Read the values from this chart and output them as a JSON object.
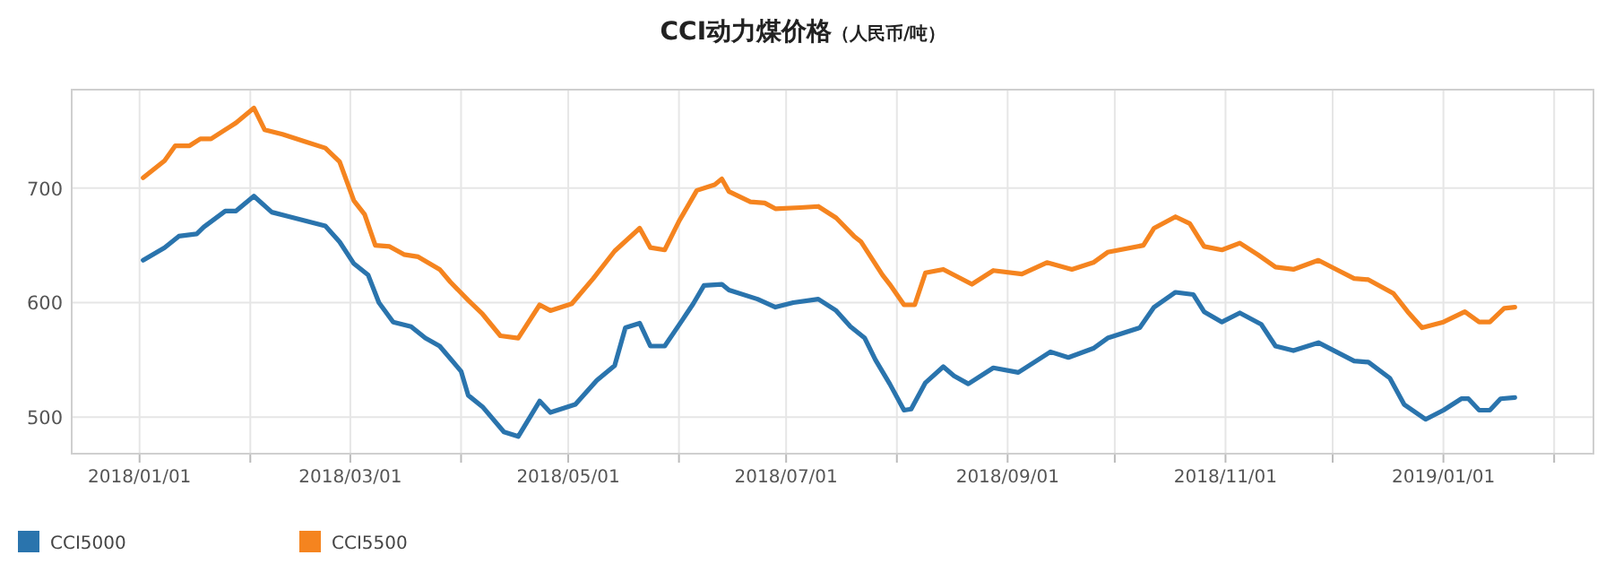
{
  "chart_data": {
    "type": "line",
    "title": "CCI动力煤价格",
    "subtitle": "（人民币/吨）",
    "xlim": [
      "2017-12-13",
      "2019-02-12"
    ],
    "ylim": [
      468,
      786
    ],
    "yticks": [
      500,
      600,
      700
    ],
    "xticks": [
      {
        "value": "2018-01-01",
        "label": "2018/01/01"
      },
      {
        "value": "2018-02-01",
        "label": null
      },
      {
        "value": "2018-03-01",
        "label": "2018/03/01"
      },
      {
        "value": "2018-04-01",
        "label": null
      },
      {
        "value": "2018-05-01",
        "label": "2018/05/01"
      },
      {
        "value": "2018-06-01",
        "label": null
      },
      {
        "value": "2018-07-01",
        "label": "2018/07/01"
      },
      {
        "value": "2018-08-01",
        "label": null
      },
      {
        "value": "2018-09-01",
        "label": "2018/09/01"
      },
      {
        "value": "2018-10-01",
        "label": null
      },
      {
        "value": "2018-11-01",
        "label": "2018/11/01"
      },
      {
        "value": "2018-12-01",
        "label": null
      },
      {
        "value": "2019-01-01",
        "label": "2019/01/01"
      },
      {
        "value": "2019-02-01",
        "label": null
      }
    ],
    "grid": true,
    "legend": "bottom left",
    "marker": "none",
    "line_style": "solid",
    "series": [
      {
        "name": "CCI5000",
        "color": "#2a74ad",
        "x": [
          "2018-01-02",
          "2018-01-08",
          "2018-01-12",
          "2018-01-17",
          "2018-01-19",
          "2018-01-25",
          "2018-01-28",
          "2018-02-02",
          "2018-02-07",
          "2018-02-12",
          "2018-02-22",
          "2018-02-26",
          "2018-03-02",
          "2018-03-06",
          "2018-03-09",
          "2018-03-13",
          "2018-03-18",
          "2018-03-22",
          "2018-03-26",
          "2018-04-01",
          "2018-04-03",
          "2018-04-07",
          "2018-04-13",
          "2018-04-17",
          "2018-04-23",
          "2018-04-26",
          "2018-05-03",
          "2018-05-09",
          "2018-05-14",
          "2018-05-17",
          "2018-05-21",
          "2018-05-24",
          "2018-05-28",
          "2018-06-02",
          "2018-06-05",
          "2018-06-08",
          "2018-06-13",
          "2018-06-15",
          "2018-06-23",
          "2018-06-28",
          "2018-07-03",
          "2018-07-10",
          "2018-07-15",
          "2018-07-19",
          "2018-07-23",
          "2018-07-26",
          "2018-07-30",
          "2018-08-03",
          "2018-08-05",
          "2018-08-09",
          "2018-08-14",
          "2018-08-17",
          "2018-08-21",
          "2018-08-28",
          "2018-09-04",
          "2018-09-09",
          "2018-09-13",
          "2018-09-18",
          "2018-09-25",
          "2018-09-29",
          "2018-10-08",
          "2018-10-12",
          "2018-10-18",
          "2018-10-23",
          "2018-10-26",
          "2018-10-31",
          "2018-11-05",
          "2018-11-11",
          "2018-11-15",
          "2018-11-20",
          "2018-11-27",
          "2018-12-02",
          "2018-12-07",
          "2018-12-11",
          "2018-12-17",
          "2018-12-21",
          "2018-12-27",
          "2019-01-01",
          "2019-01-06",
          "2019-01-08",
          "2019-01-11",
          "2019-01-14",
          "2019-01-17",
          "2019-01-21"
        ],
        "values": [
          637,
          648,
          658,
          660,
          666,
          680,
          680,
          693,
          679,
          675,
          667,
          653,
          634,
          624,
          600,
          583,
          579,
          569,
          562,
          540,
          519,
          509,
          487,
          483,
          514,
          504,
          511,
          532,
          545,
          578,
          582,
          562,
          562,
          585,
          599,
          615,
          616,
          611,
          603,
          596,
          600,
          603,
          593,
          579,
          569,
          550,
          529,
          506,
          507,
          530,
          544,
          536,
          529,
          543,
          539,
          549,
          557,
          552,
          560,
          569,
          578,
          596,
          609,
          607,
          592,
          583,
          591,
          581,
          562,
          558,
          565,
          557,
          549,
          548,
          534,
          511,
          498,
          506,
          516,
          516,
          506,
          506,
          516,
          517
        ]
      },
      {
        "name": "CCI5500",
        "color": "#f5841f",
        "x": [
          "2018-01-02",
          "2018-01-08",
          "2018-01-11",
          "2018-01-15",
          "2018-01-18",
          "2018-01-21",
          "2018-01-25",
          "2018-01-28",
          "2018-02-02",
          "2018-02-05",
          "2018-02-10",
          "2018-02-16",
          "2018-02-22",
          "2018-02-26",
          "2018-03-02",
          "2018-03-05",
          "2018-03-08",
          "2018-03-12",
          "2018-03-16",
          "2018-03-20",
          "2018-03-26",
          "2018-03-29",
          "2018-04-03",
          "2018-04-07",
          "2018-04-12",
          "2018-04-17",
          "2018-04-23",
          "2018-04-26",
          "2018-05-02",
          "2018-05-08",
          "2018-05-14",
          "2018-05-21",
          "2018-05-24",
          "2018-05-28",
          "2018-06-01",
          "2018-06-06",
          "2018-06-11",
          "2018-06-13",
          "2018-06-15",
          "2018-06-21",
          "2018-06-25",
          "2018-06-28",
          "2018-07-05",
          "2018-07-10",
          "2018-07-15",
          "2018-07-20",
          "2018-07-22",
          "2018-07-28",
          "2018-07-30",
          "2018-08-03",
          "2018-08-06",
          "2018-08-09",
          "2018-08-14",
          "2018-08-22",
          "2018-08-28",
          "2018-09-05",
          "2018-09-12",
          "2018-09-19",
          "2018-09-25",
          "2018-09-29",
          "2018-10-09",
          "2018-10-12",
          "2018-10-18",
          "2018-10-22",
          "2018-10-26",
          "2018-10-31",
          "2018-11-05",
          "2018-11-10",
          "2018-11-15",
          "2018-11-20",
          "2018-11-27",
          "2018-12-02",
          "2018-12-07",
          "2018-12-11",
          "2018-12-18",
          "2018-12-22",
          "2018-12-26",
          "2019-01-01",
          "2019-01-07",
          "2019-01-11",
          "2019-01-14",
          "2019-01-18",
          "2019-01-21"
        ],
        "values": [
          709,
          724,
          737,
          737,
          743,
          743,
          751,
          757,
          770,
          751,
          747,
          741,
          735,
          723,
          689,
          677,
          650,
          649,
          642,
          640,
          629,
          618,
          602,
          590,
          571,
          569,
          598,
          593,
          599,
          621,
          645,
          665,
          648,
          646,
          671,
          698,
          703,
          708,
          697,
          688,
          687,
          682,
          683,
          684,
          674,
          658,
          653,
          624,
          616,
          598,
          598,
          626,
          629,
          616,
          628,
          625,
          635,
          629,
          635,
          644,
          650,
          665,
          675,
          669,
          649,
          646,
          652,
          642,
          631,
          629,
          637,
          629,
          621,
          620,
          608,
          592,
          578,
          583,
          592,
          583,
          583,
          595,
          596
        ]
      }
    ]
  }
}
